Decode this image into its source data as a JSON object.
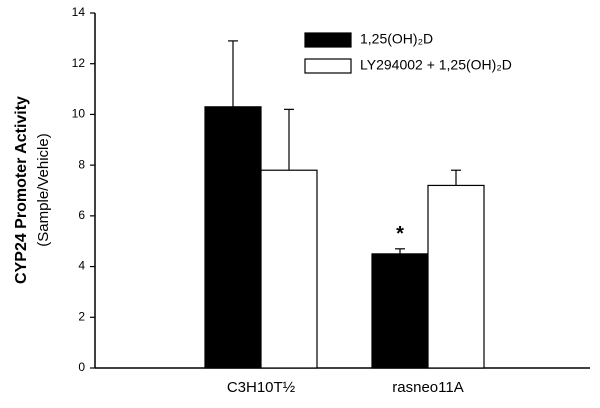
{
  "chart_data": {
    "type": "bar",
    "ylabel": [
      "CYP24 Promoter Activity",
      "(Sample/Vehicle)"
    ],
    "categories": [
      "C3H10T½",
      "rasneo11A"
    ],
    "series": [
      {
        "name": "1,25(OH)₂D",
        "color": "#000000",
        "values": [
          10.3,
          4.5
        ],
        "errors": [
          2.6,
          0.2
        ]
      },
      {
        "name": "LY294002 + 1,25(OH)₂D",
        "color": "#ffffff",
        "values": [
          7.8,
          7.2
        ],
        "errors": [
          2.4,
          0.6
        ]
      }
    ],
    "annotation": "*",
    "ylim": [
      0,
      14
    ],
    "yticks": [
      0,
      2,
      4,
      6,
      8,
      10,
      12,
      14
    ],
    "legend": "upper right"
  }
}
